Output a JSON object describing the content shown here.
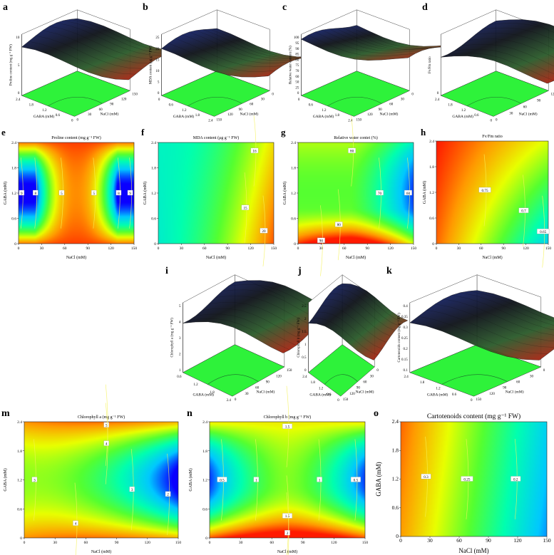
{
  "palette": {
    "floor": "#2ef23a",
    "stops": [
      "#0a00ff",
      "#00c8ff",
      "#00ffb0",
      "#55ff30",
      "#e8ff00",
      "#ff9a00",
      "#ff1a00"
    ],
    "surface_dark": "#101820",
    "contour": "#f5f35a"
  },
  "chart_data": [
    {
      "id": "a",
      "panel_label": "a",
      "type": "surface3d",
      "zlabel": "Proline content (mg g⁻¹ FW)",
      "xlabel": "GABA (mM)",
      "ylabel": "NaCl (mM)",
      "zticks": [
        "0",
        "5",
        "10"
      ],
      "xticks": [
        "2.4",
        "1.8",
        "1.2",
        "0.6",
        "0"
      ],
      "yticks": [
        "0",
        "30",
        "60",
        "90",
        "120",
        "150"
      ]
    },
    {
      "id": "b",
      "panel_label": "b",
      "type": "surface3d",
      "zlabel": "MDA content (μg g⁻¹ FW)",
      "xlabel": "GABA (mM)",
      "ylabel": "NaCl (mM)",
      "zticks": [
        "0",
        "5",
        "10",
        "15",
        "20",
        "25"
      ],
      "xticks": [
        "0",
        "0.6",
        "1.2",
        "1.8",
        "2.4"
      ],
      "yticks": [
        "150",
        "120",
        "90",
        "60",
        "30",
        "0"
      ]
    },
    {
      "id": "c",
      "panel_label": "c",
      "type": "surface3d",
      "zlabel": "Relative water content (%)",
      "xlabel": "GABA (mM)",
      "ylabel": "NaCl (mM)",
      "zticks": [
        "0",
        "25",
        "50",
        "60",
        "70",
        "75",
        "80",
        "85",
        "90",
        "95",
        "100"
      ],
      "xticks": [
        "0",
        "0.6",
        "1.2",
        "1.8",
        "2.4"
      ],
      "yticks": [
        "150",
        "120",
        "90",
        "60",
        "30",
        "0"
      ]
    },
    {
      "id": "d",
      "panel_label": "d",
      "type": "surface3d",
      "zlabel": "Fv/Fm ratio",
      "xlabel": "GABA (mM)",
      "ylabel": "NaCl (mM)",
      "zticks": [
        "0"
      ],
      "xticks": [
        "2.4",
        "1.8",
        "1.2",
        "0.6",
        "0"
      ],
      "yticks": [
        "0",
        "30",
        "60",
        "90",
        "120"
      ]
    },
    {
      "id": "e",
      "panel_label": "e",
      "type": "heatmap",
      "title": "Proline content (mg g⁻¹ FW)",
      "xlabel": "NaCl (mM)",
      "ylabel": "GABA (mM)",
      "xlim": [
        0,
        150
      ],
      "ylim": [
        0,
        2.4
      ],
      "xticks": [
        "0",
        "30",
        "60",
        "90",
        "120",
        "150"
      ],
      "yticks": [
        "0",
        "0.6",
        "1.2",
        "1.8",
        "2.4"
      ],
      "contour_labels": [
        {
          "text": "9",
          "x": 4,
          "y": 1.2
        },
        {
          "text": "8",
          "x": 22,
          "y": 1.2
        },
        {
          "text": "5",
          "x": 56,
          "y": 1.2
        },
        {
          "text": "5",
          "x": 98,
          "y": 1.2
        },
        {
          "text": "8",
          "x": 130,
          "y": 1.2
        },
        {
          "text": "9",
          "x": 145,
          "y": 1.2
        }
      ],
      "model": {
        "kind": "e"
      }
    },
    {
      "id": "f",
      "panel_label": "f",
      "type": "heatmap",
      "title": "MDA content (μg g⁻¹ FW)",
      "xlabel": "NaCl (mM)",
      "ylabel": "GABA (mM)",
      "xlim": [
        0,
        150
      ],
      "ylim": [
        0,
        2.4
      ],
      "xticks": [
        "0",
        "30",
        "60",
        "90",
        "120",
        "150"
      ],
      "yticks": [
        "0",
        "0.6",
        "1.2",
        "1.8",
        "2.4"
      ],
      "contour_labels": [
        {
          "text": "16",
          "x": 125,
          "y": 2.2
        },
        {
          "text": "15",
          "x": 113,
          "y": 0.85
        },
        {
          "text": "20",
          "x": 137,
          "y": 0.3
        }
      ],
      "model": {
        "kind": "f"
      }
    },
    {
      "id": "g",
      "panel_label": "g",
      "type": "heatmap",
      "title": "Relative water contet (%)",
      "xlabel": "NaCl (mM)",
      "ylabel": "GABA (mM)",
      "xlim": [
        0,
        150
      ],
      "ylim": [
        0,
        2.4
      ],
      "xticks": [
        "0",
        "30",
        "60",
        "90",
        "120",
        "150"
      ],
      "yticks": [
        "0",
        "0.6",
        "1.2",
        "1.8",
        "2.4"
      ],
      "contour_labels": [
        {
          "text": "80",
          "x": 70,
          "y": 2.2
        },
        {
          "text": "70",
          "x": 106,
          "y": 1.2
        },
        {
          "text": "60",
          "x": 143,
          "y": 1.2
        },
        {
          "text": "80",
          "x": 53,
          "y": 0.45
        },
        {
          "text": "90",
          "x": 30,
          "y": 0.07
        }
      ],
      "model": {
        "kind": "g"
      }
    },
    {
      "id": "h",
      "panel_label": "h",
      "type": "heatmap",
      "title": "Fv/Fm ratio",
      "xlabel": "NaCl (mM)",
      "ylabel": "GABA (mM)",
      "xlim": [
        0,
        150
      ],
      "ylim": [
        0,
        2.4
      ],
      "xticks": [
        "0",
        "30",
        "60",
        "90",
        "120",
        "150"
      ],
      "yticks": [
        "0",
        "0.6",
        "1.2",
        "1.8",
        "2.4"
      ],
      "contour_labels": [
        {
          "text": "0.75",
          "x": 65,
          "y": 1.25
        },
        {
          "text": "0.7",
          "x": 117,
          "y": 0.77
        },
        {
          "text": "0.65",
          "x": 143,
          "y": 0.28
        }
      ],
      "model": {
        "kind": "h"
      }
    },
    {
      "id": "i",
      "panel_label": "i",
      "type": "surface3d",
      "zlabel": "Chlorophyll a (mg g⁻¹ FW)",
      "xlabel": "GABA (mM)",
      "ylabel": "NaCl (mM)",
      "zticks": [
        "1",
        "2",
        "3",
        "4",
        "5"
      ],
      "xticks": [
        "0.6",
        "1.2",
        "1.8",
        "2.4"
      ],
      "yticks": [
        "0",
        "30",
        "60",
        "90",
        "120",
        "150"
      ]
    },
    {
      "id": "j",
      "panel_label": "j",
      "type": "surface3d",
      "zlabel": "Chlorophyll b (mg g⁻¹ FW)",
      "xlabel": "GABA (mM)",
      "ylabel": "NaCl (mM)",
      "zticks": [
        "0",
        "0.5",
        "1",
        "1.5",
        "2",
        "2.5"
      ],
      "xticks": [
        "2.4",
        "1.8",
        "1.2",
        "0.6",
        "0"
      ],
      "yticks": [
        "150",
        "120",
        "90",
        "60",
        "30",
        "0"
      ]
    },
    {
      "id": "k",
      "panel_label": "k",
      "type": "surface3d",
      "zlabel": "Cartotenoids content (mg g⁻¹ FW)",
      "xlabel": "GABA (mM)",
      "ylabel": "NaCl (mM)",
      "zticks": [
        "0.1",
        "0.15",
        "0.2",
        "0.25",
        "0.3",
        "0.35",
        "0.4"
      ],
      "xticks": [
        "2.4",
        "1.8",
        "1.2",
        "0.6",
        "0"
      ],
      "yticks": [
        "150",
        "120",
        "90",
        "60",
        "30",
        "0"
      ]
    },
    {
      "id": "m",
      "panel_label": "m",
      "type": "heatmap",
      "title": "Chlorophyll a (mg g⁻¹ FW)",
      "xlabel": "NaCl (mM)",
      "ylabel": "GABA (mM)",
      "xlim": [
        0,
        150
      ],
      "ylim": [
        0,
        2.4
      ],
      "xticks": [
        "0",
        "30",
        "60",
        "90",
        "120",
        "150"
      ],
      "yticks": [
        "0",
        "0.6",
        "1.2",
        "1.8",
        "2.4"
      ],
      "contour_labels": [
        {
          "text": "5",
          "x": 80,
          "y": 2.33
        },
        {
          "text": "4",
          "x": 80,
          "y": 1.95
        },
        {
          "text": "3",
          "x": 10,
          "y": 1.2
        },
        {
          "text": "3",
          "x": 105,
          "y": 1.0
        },
        {
          "text": "2",
          "x": 140,
          "y": 0.9
        },
        {
          "text": "4",
          "x": 50,
          "y": 0.3
        }
      ],
      "model": {
        "kind": "m"
      }
    },
    {
      "id": "n",
      "panel_label": "n",
      "type": "heatmap",
      "title": "Chlorophyll b (mg g⁻¹ FW)",
      "xlabel": "NaCl (mM)",
      "ylabel": "GABA (mM)",
      "xlim": [
        0,
        150
      ],
      "ylim": [
        0,
        2.4
      ],
      "xticks": [
        "0",
        "30",
        "60",
        "90",
        "120",
        "150"
      ],
      "yticks": [
        "0",
        "0.6",
        "1.2",
        "1.8",
        "2.4"
      ],
      "contour_labels": [
        {
          "text": "1.5",
          "x": 75,
          "y": 2.3
        },
        {
          "text": "0.5",
          "x": 12,
          "y": 1.2
        },
        {
          "text": "1",
          "x": 45,
          "y": 1.2
        },
        {
          "text": "1",
          "x": 106,
          "y": 1.2
        },
        {
          "text": "0.5",
          "x": 141,
          "y": 1.2
        },
        {
          "text": "1.5",
          "x": 75,
          "y": 0.45
        },
        {
          "text": "2",
          "x": 75,
          "y": 0.1
        }
      ],
      "model": {
        "kind": "n"
      }
    },
    {
      "id": "o",
      "panel_label": "o",
      "type": "heatmap",
      "title": "Cartotenoids content (mg g⁻¹ FW)",
      "xlabel": "NaCl (mM)",
      "ylabel": "GABA (mM)",
      "xlim": [
        0,
        150
      ],
      "ylim": [
        0,
        2.4
      ],
      "xticks": [
        "0",
        "30",
        "60",
        "90",
        "120",
        "150"
      ],
      "yticks": [
        "0",
        "0.6",
        "1.2",
        "1.8",
        "2.4"
      ],
      "contour_labels": [
        {
          "text": "0.3",
          "x": 26,
          "y": 1.25
        },
        {
          "text": "0.25",
          "x": 68,
          "y": 1.2
        },
        {
          "text": "0.2",
          "x": 118,
          "y": 1.2
        }
      ],
      "model": {
        "kind": "o"
      }
    }
  ]
}
